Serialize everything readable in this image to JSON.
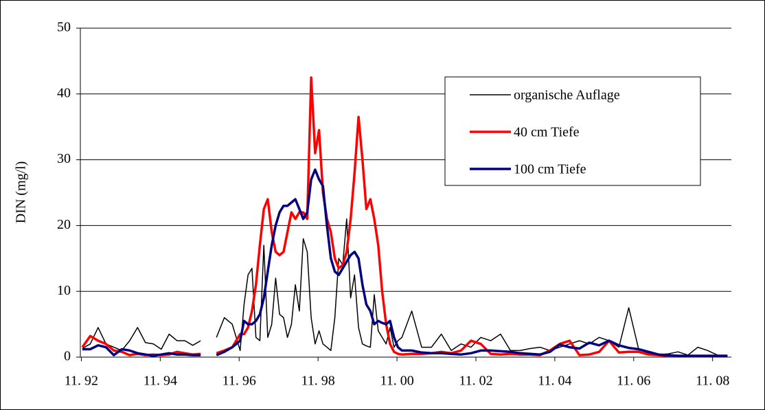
{
  "chart_data": {
    "type": "line",
    "y_label": "DIN  (mg/l)",
    "x": [
      1992.9,
      1993.1,
      1993.3,
      1993.5,
      1993.7,
      1993.9,
      1994.1,
      1994.3,
      1994.5,
      1994.7,
      1994.9,
      1995.1,
      1995.3,
      1995.5,
      1995.7,
      1995.9,
      1996.1,
      1996.3,
      1996.5,
      1996.7,
      1996.9,
      1997.0,
      1997.1,
      1997.2,
      1997.3,
      1997.4,
      1997.5,
      1997.6,
      1997.7,
      1997.8,
      1997.9,
      1998.0,
      1998.1,
      1998.2,
      1998.3,
      1998.4,
      1998.5,
      1998.6,
      1998.7,
      1998.8,
      1998.9,
      1999.0,
      1999.1,
      1999.2,
      1999.3,
      1999.4,
      1999.5,
      1999.6,
      1999.7,
      1999.8,
      1999.9,
      2000.0,
      2000.1,
      2000.2,
      2000.3,
      2000.4,
      2000.5,
      2000.6,
      2000.7,
      2000.8,
      2000.9,
      2001.0,
      2001.25,
      2001.5,
      2001.75,
      2002,
      2002.25,
      2002.5,
      2002.75,
      2003,
      2003.25,
      2003.5,
      2003.75,
      2004,
      2004.25,
      2004.5,
      2004.75,
      2005,
      2005.25,
      2005.5,
      2005.75,
      2006,
      2006.25,
      2006.5,
      2006.75,
      2007,
      2007.25,
      2007.5,
      2007.75,
      2008,
      2008.25,
      2008.5,
      2008.75,
      2009,
      2009.25
    ],
    "series": [
      {
        "name": "organische Auflage",
        "color": "#000000",
        "width": 1.5,
        "values": [
          1.3,
          2,
          4.5,
          2,
          1.5,
          1,
          2.5,
          4.5,
          2.2,
          2,
          1.2,
          3.5,
          2.5,
          2.5,
          1.8,
          2.5,
          null,
          3,
          6,
          5,
          1,
          8,
          12.5,
          13.5,
          3,
          2.5,
          17,
          3,
          5,
          12,
          6.5,
          6,
          3,
          5,
          11,
          7,
          18,
          16,
          6,
          2,
          4,
          2,
          1.5,
          1,
          6,
          15,
          14,
          21,
          9,
          12.5,
          4.5,
          2,
          1.7,
          1.5,
          9.5,
          4,
          3,
          2,
          4.5,
          1.5,
          2.5,
          3,
          7,
          1.5,
          1.5,
          3.5,
          1,
          2,
          1.5,
          3,
          2.5,
          3.5,
          1,
          1,
          1.3,
          1.5,
          1,
          1.5,
          2,
          2.5,
          2,
          3,
          2.5,
          1.5,
          7.5,
          1.2,
          0.6,
          0.4,
          0.5,
          0.8,
          0.3,
          1.5,
          1,
          0.3,
          0.2
        ]
      },
      {
        "name": "40 cm Tiefe",
        "color": "#ff0000",
        "width": 3.5,
        "values": [
          1.5,
          3.2,
          2.5,
          2,
          1,
          0.8,
          0.3,
          0.5,
          0.3,
          0.4,
          0.3,
          0.4,
          0.8,
          0.6,
          0.4,
          0.5,
          null,
          0.6,
          1,
          1.5,
          3.5,
          3.5,
          4.5,
          7,
          11,
          17,
          22.5,
          24,
          19,
          16,
          15.5,
          16,
          19,
          22,
          21,
          22,
          22,
          21,
          42.5,
          31,
          34.5,
          25,
          21,
          19,
          15,
          13.5,
          14,
          16,
          21,
          28,
          36.5,
          30,
          22.5,
          24,
          21,
          17,
          10,
          5,
          2,
          0.8,
          0.5,
          0.4,
          0.5,
          0.5,
          0.6,
          0.8,
          0.6,
          1,
          2.5,
          2,
          0.5,
          0.4,
          0.5,
          0.4,
          0.4,
          0.3,
          1,
          2,
          2.5,
          0.3,
          0.4,
          0.8,
          2.5,
          0.7,
          0.8,
          0.8,
          0.4,
          0.3,
          0.2,
          0.2,
          0.2,
          0.2,
          0.2,
          0.2,
          0.2
        ]
      },
      {
        "name": "100 cm Tiefe",
        "color": "#000080",
        "width": 3.5,
        "values": [
          1.2,
          1.2,
          1.8,
          1.5,
          0.3,
          1.2,
          1,
          0.6,
          0.4,
          0.2,
          0.4,
          0.6,
          0.4,
          0.4,
          0.3,
          0.3,
          null,
          0.3,
          0.8,
          1.5,
          2.5,
          5.5,
          5,
          5,
          5.5,
          6.5,
          9,
          13,
          17,
          20,
          22,
          23,
          23,
          23.5,
          24,
          22.5,
          21,
          22,
          27,
          28.5,
          27,
          26,
          20,
          15,
          13,
          12.5,
          13.5,
          14.5,
          15.5,
          16,
          15,
          11,
          8,
          7,
          5,
          5.5,
          5.2,
          5,
          5.5,
          3,
          1.5,
          1,
          1,
          0.7,
          0.6,
          0.6,
          0.5,
          0.4,
          0.6,
          1,
          1,
          0.9,
          0.8,
          0.6,
          0.5,
          0.4,
          0.8,
          1.9,
          1.5,
          1.3,
          2.2,
          1.8,
          2.5,
          1.8,
          1.4,
          1.2,
          0.8,
          0.4,
          0.3,
          0.2,
          0.2,
          0.2,
          0.2,
          0.2,
          0.2
        ]
      }
    ],
    "xlim": [
      1992.85,
      2009.35
    ],
    "xticks": [
      {
        "value": 1992.875,
        "label": "11. 92"
      },
      {
        "value": 1994.875,
        "label": "11. 94"
      },
      {
        "value": 1996.875,
        "label": "11. 96"
      },
      {
        "value": 1998.875,
        "label": "11. 98"
      },
      {
        "value": 2000.875,
        "label": "11. 00"
      },
      {
        "value": 2002.875,
        "label": "11. 02"
      },
      {
        "value": 2004.875,
        "label": "11. 04"
      },
      {
        "value": 2006.875,
        "label": "11. 06"
      },
      {
        "value": 2008.875,
        "label": "11. 08"
      }
    ],
    "ylim": [
      0,
      50
    ],
    "yticks": [
      0,
      10,
      20,
      30,
      40,
      50
    ],
    "grid": true,
    "legend": "upper right"
  }
}
